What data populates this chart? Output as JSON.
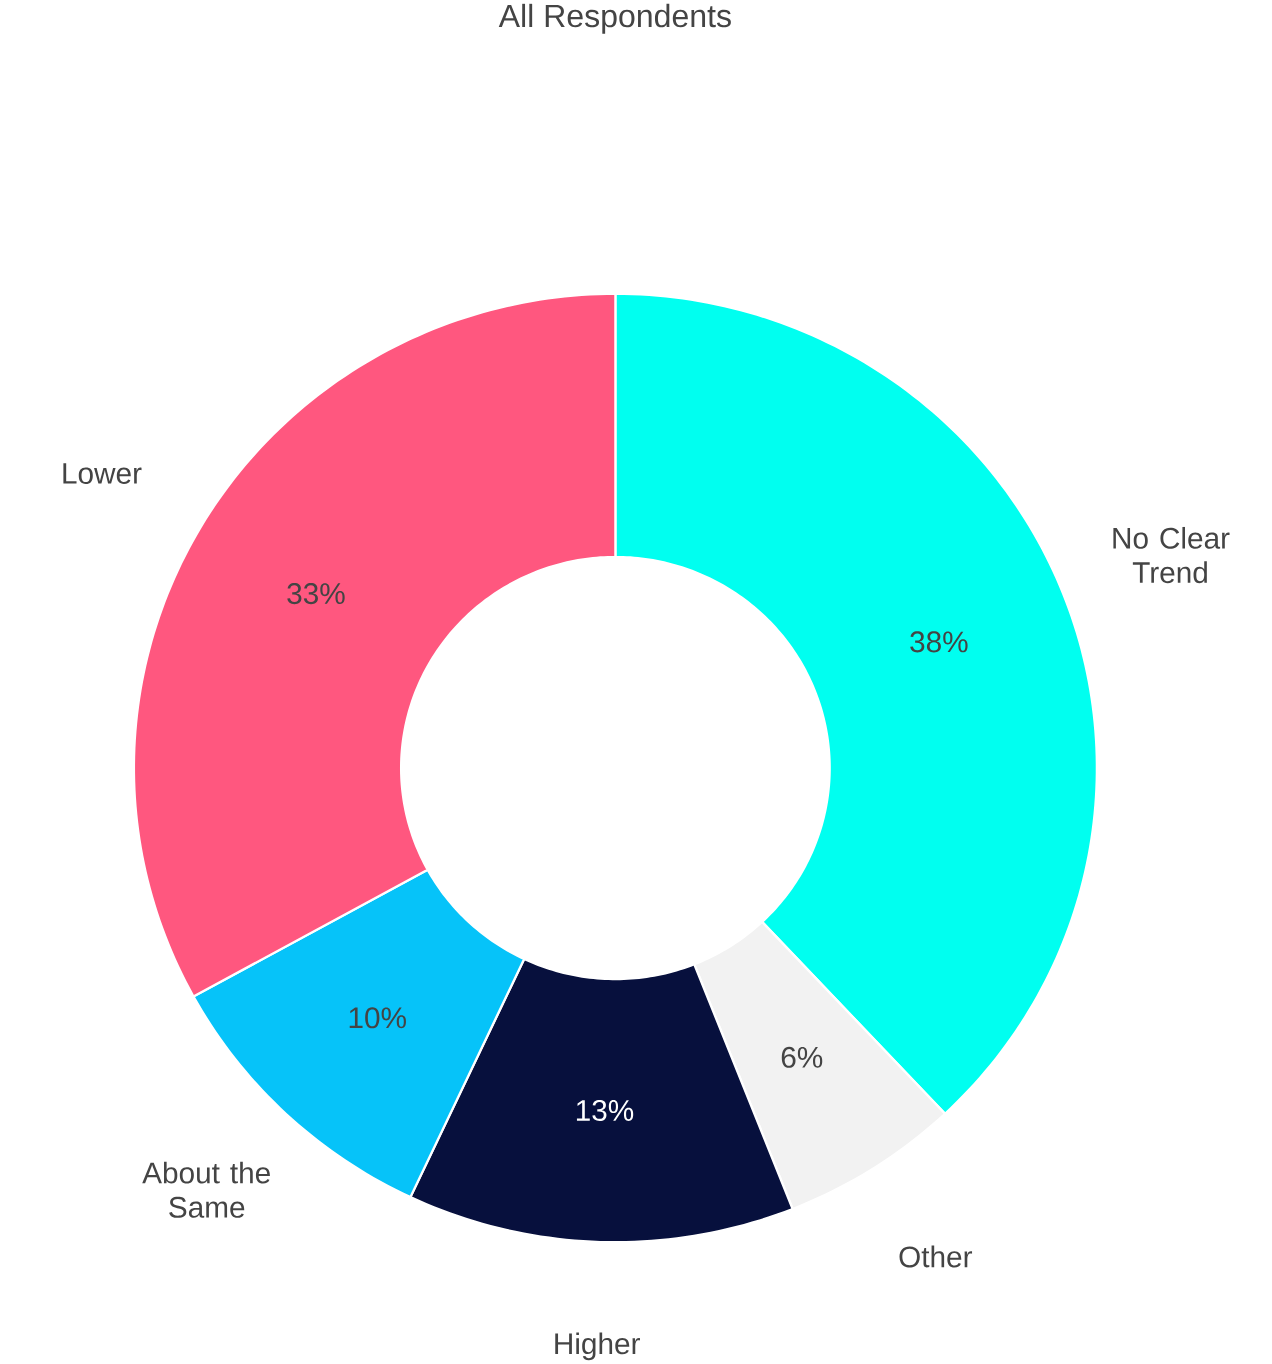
{
  "chart_data": {
    "type": "donut",
    "title": "All Respondents",
    "categories": [
      "No Clear Trend",
      "Other",
      "Higher",
      "About the Same",
      "Lower"
    ],
    "values": [
      38,
      6,
      13,
      10,
      33
    ],
    "colors": [
      "#00fff0",
      "#f2f2f2",
      "#07103d",
      "#06c3f9",
      "#ff577f"
    ],
    "value_labels": [
      "38%",
      "6%",
      "13%",
      "10%",
      "33%"
    ]
  }
}
